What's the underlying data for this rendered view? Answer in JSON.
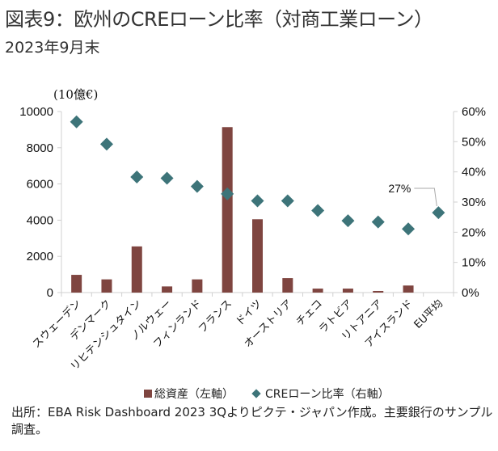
{
  "header": {
    "title": "図表9：欧州のCREローン比率（対商工業ローン）",
    "subtitle": "2023年9月末"
  },
  "chart_data": {
    "type": "bar",
    "title": "図表9：欧州のCREローン比率（対商工業ローン）",
    "subtitle": "2023年9月末",
    "unit_label": "(10億€)",
    "categories": [
      "スウェーデン",
      "デンマーク",
      "リヒテンシュタイン",
      "ノルウェー",
      "フィンランド",
      "フランス",
      "ドイツ",
      "オーストリア",
      "チェコ",
      "ラトビア",
      "リトアニア",
      "アイスランド",
      "EU平均"
    ],
    "series": [
      {
        "name": "総資産（左軸）",
        "type": "bar",
        "axis": "left",
        "color": "#7f4540",
        "values": [
          980,
          730,
          2550,
          340,
          730,
          9140,
          4050,
          800,
          220,
          220,
          90,
          390,
          null
        ]
      },
      {
        "name": "CREローン比率（右軸）",
        "type": "scatter",
        "axis": "right",
        "marker": "diamond",
        "color": "#3d7479",
        "values": [
          56.6,
          49.2,
          38.3,
          37.9,
          35.2,
          32.7,
          30.4,
          30.4,
          27.2,
          23.8,
          23.4,
          21.1,
          26.5
        ]
      }
    ],
    "y_left": {
      "min": 0,
      "max": 10000,
      "ticks": [
        "0",
        "2000",
        "4000",
        "6000",
        "8000",
        "10000"
      ]
    },
    "y_right": {
      "min": 0,
      "max": 60,
      "ticks": [
        "0%",
        "10%",
        "20%",
        "30%",
        "40%",
        "50%",
        "60%"
      ]
    },
    "annotations": [
      {
        "category": "EU平均",
        "text": "27%"
      }
    ],
    "legend": {
      "position": "bottom",
      "items": [
        "総資産（左軸）",
        "CREローン比率（右軸）"
      ]
    },
    "grid": false
  },
  "legend": {
    "bar_label": "総資産（左軸）",
    "marker_label": "CREローン比率（右軸）"
  },
  "source": "出所：EBA Risk Dashboard 2023 3Qよりピクテ・ジャパン作成。主要銀行のサンプル調査。"
}
